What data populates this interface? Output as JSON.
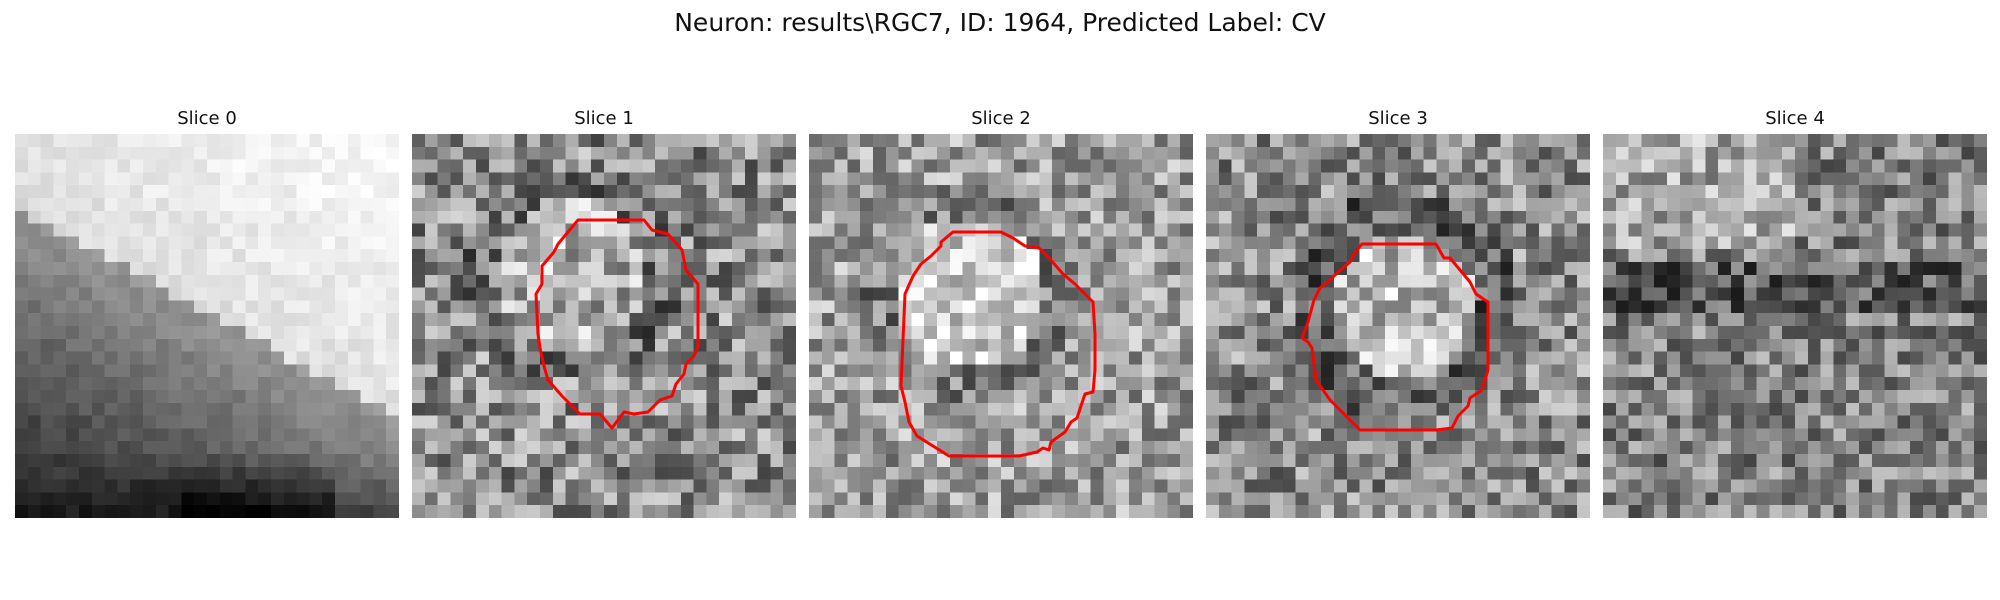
{
  "figure": {
    "title": "Neuron: results\\RGC7, ID: 1964, Predicted Label: CV"
  },
  "panels": [
    {
      "title": "Slice 0",
      "has_contour": false
    },
    {
      "title": "Slice 1",
      "has_contour": true
    },
    {
      "title": "Slice 2",
      "has_contour": true
    },
    {
      "title": "Slice 3",
      "has_contour": true
    },
    {
      "title": "Slice 4",
      "has_contour": false
    }
  ],
  "colors": {
    "background": "#ffffff",
    "contour": "#ff0000",
    "colormap": "gray"
  }
}
